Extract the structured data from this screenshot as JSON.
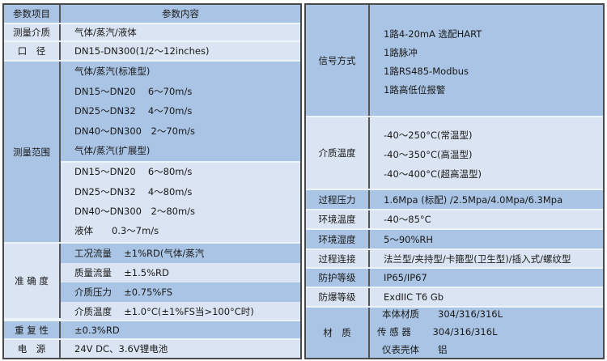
{
  "colors": {
    "blue": "#a9c4e4",
    "light": "#dae4f2",
    "border": "#4a4a4a"
  },
  "left": {
    "header": {
      "key": "参数项目",
      "value": "参数内容"
    },
    "medium": {
      "key": "测量介质",
      "value": "气体/蒸汽/液体"
    },
    "diameter": {
      "key": "口　径",
      "value": "DN15-DN300(1/2～12inches)"
    },
    "range": {
      "key": "测量范围",
      "lines": [
        "气体/蒸汽(标准型)",
        "DN15～DN20　 6～70m/s",
        "DN25～DN32　 4～70m/s",
        "DN40～DN300　2～70m/s",
        "气体/蒸汽(扩展型)",
        "DN15～DN20　 6～80m/s",
        "DN25～DN32　 4～80m/s",
        "DN40～DN300　2～80m/s",
        "液体　　0.3～7m/s"
      ]
    },
    "accuracy": {
      "key": "准 确 度",
      "lines": [
        "工况流量　 ±1%RD(气体/蒸汽",
        "质量流量　 ±1.5%RD",
        "介质压力　 ±0.75%FS",
        "介质温度　 ±1.0°C(±1%FS当>100°C时)"
      ]
    },
    "repeat": {
      "key": "重 复 性",
      "value": "±0.3%RD"
    },
    "power": {
      "key": "电　源",
      "value": "24V DC、3.6V锂电池"
    }
  },
  "right": {
    "signal": {
      "key": "信号方式",
      "lines": [
        "1路4-20mA 选配HART",
        "1路脉冲",
        "1路RS485-Modbus",
        "1路高低位报警"
      ]
    },
    "temp": {
      "key": "介质温度",
      "lines": [
        "-40～250°C(常温型)",
        "-40～350°C(高温型)",
        "-40～400°C(超高温型)"
      ]
    },
    "pressure": {
      "key": "过程压力",
      "value": "1.6Mpa (标配) /2.5Mpa/4.0Mpa/6.3Mpa"
    },
    "ambient_temp": {
      "key": "环境温度",
      "value": "-40～85°C"
    },
    "humidity": {
      "key": "环境湿度",
      "value": "5～90%RH"
    },
    "connection": {
      "key": "过程连接",
      "value": "法兰型/夹持型/卡箍型(卫生型)/插入式/螺纹型"
    },
    "protection": {
      "key": "防护等级",
      "value": "IP65/IP67"
    },
    "explosion": {
      "key": "防爆等级",
      "value": "ExdIIC T6 Gb"
    },
    "material": {
      "key": "材　质",
      "lines": [
        "本体材质　　304/316/316L",
        "传 感 器　　 304/316/316L",
        "仪表壳体　　铝"
      ]
    }
  }
}
